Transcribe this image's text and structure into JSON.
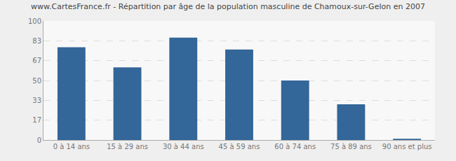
{
  "chart_data": {
    "type": "bar",
    "title": "www.CartesFrance.fr - Répartition par âge de la population masculine de Chamoux-sur-Gelon en 2007",
    "categories": [
      "0 à 14 ans",
      "15 à 29 ans",
      "30 à 44 ans",
      "45 à 59 ans",
      "60 à 74 ans",
      "75 à 89 ans",
      "90 ans et plus"
    ],
    "values": [
      78,
      61,
      86,
      76,
      50,
      30,
      1
    ],
    "color": "#336699",
    "ylim": [
      0,
      100
    ],
    "yticks": [
      0,
      17,
      33,
      50,
      67,
      83,
      100
    ],
    "grid": true
  }
}
